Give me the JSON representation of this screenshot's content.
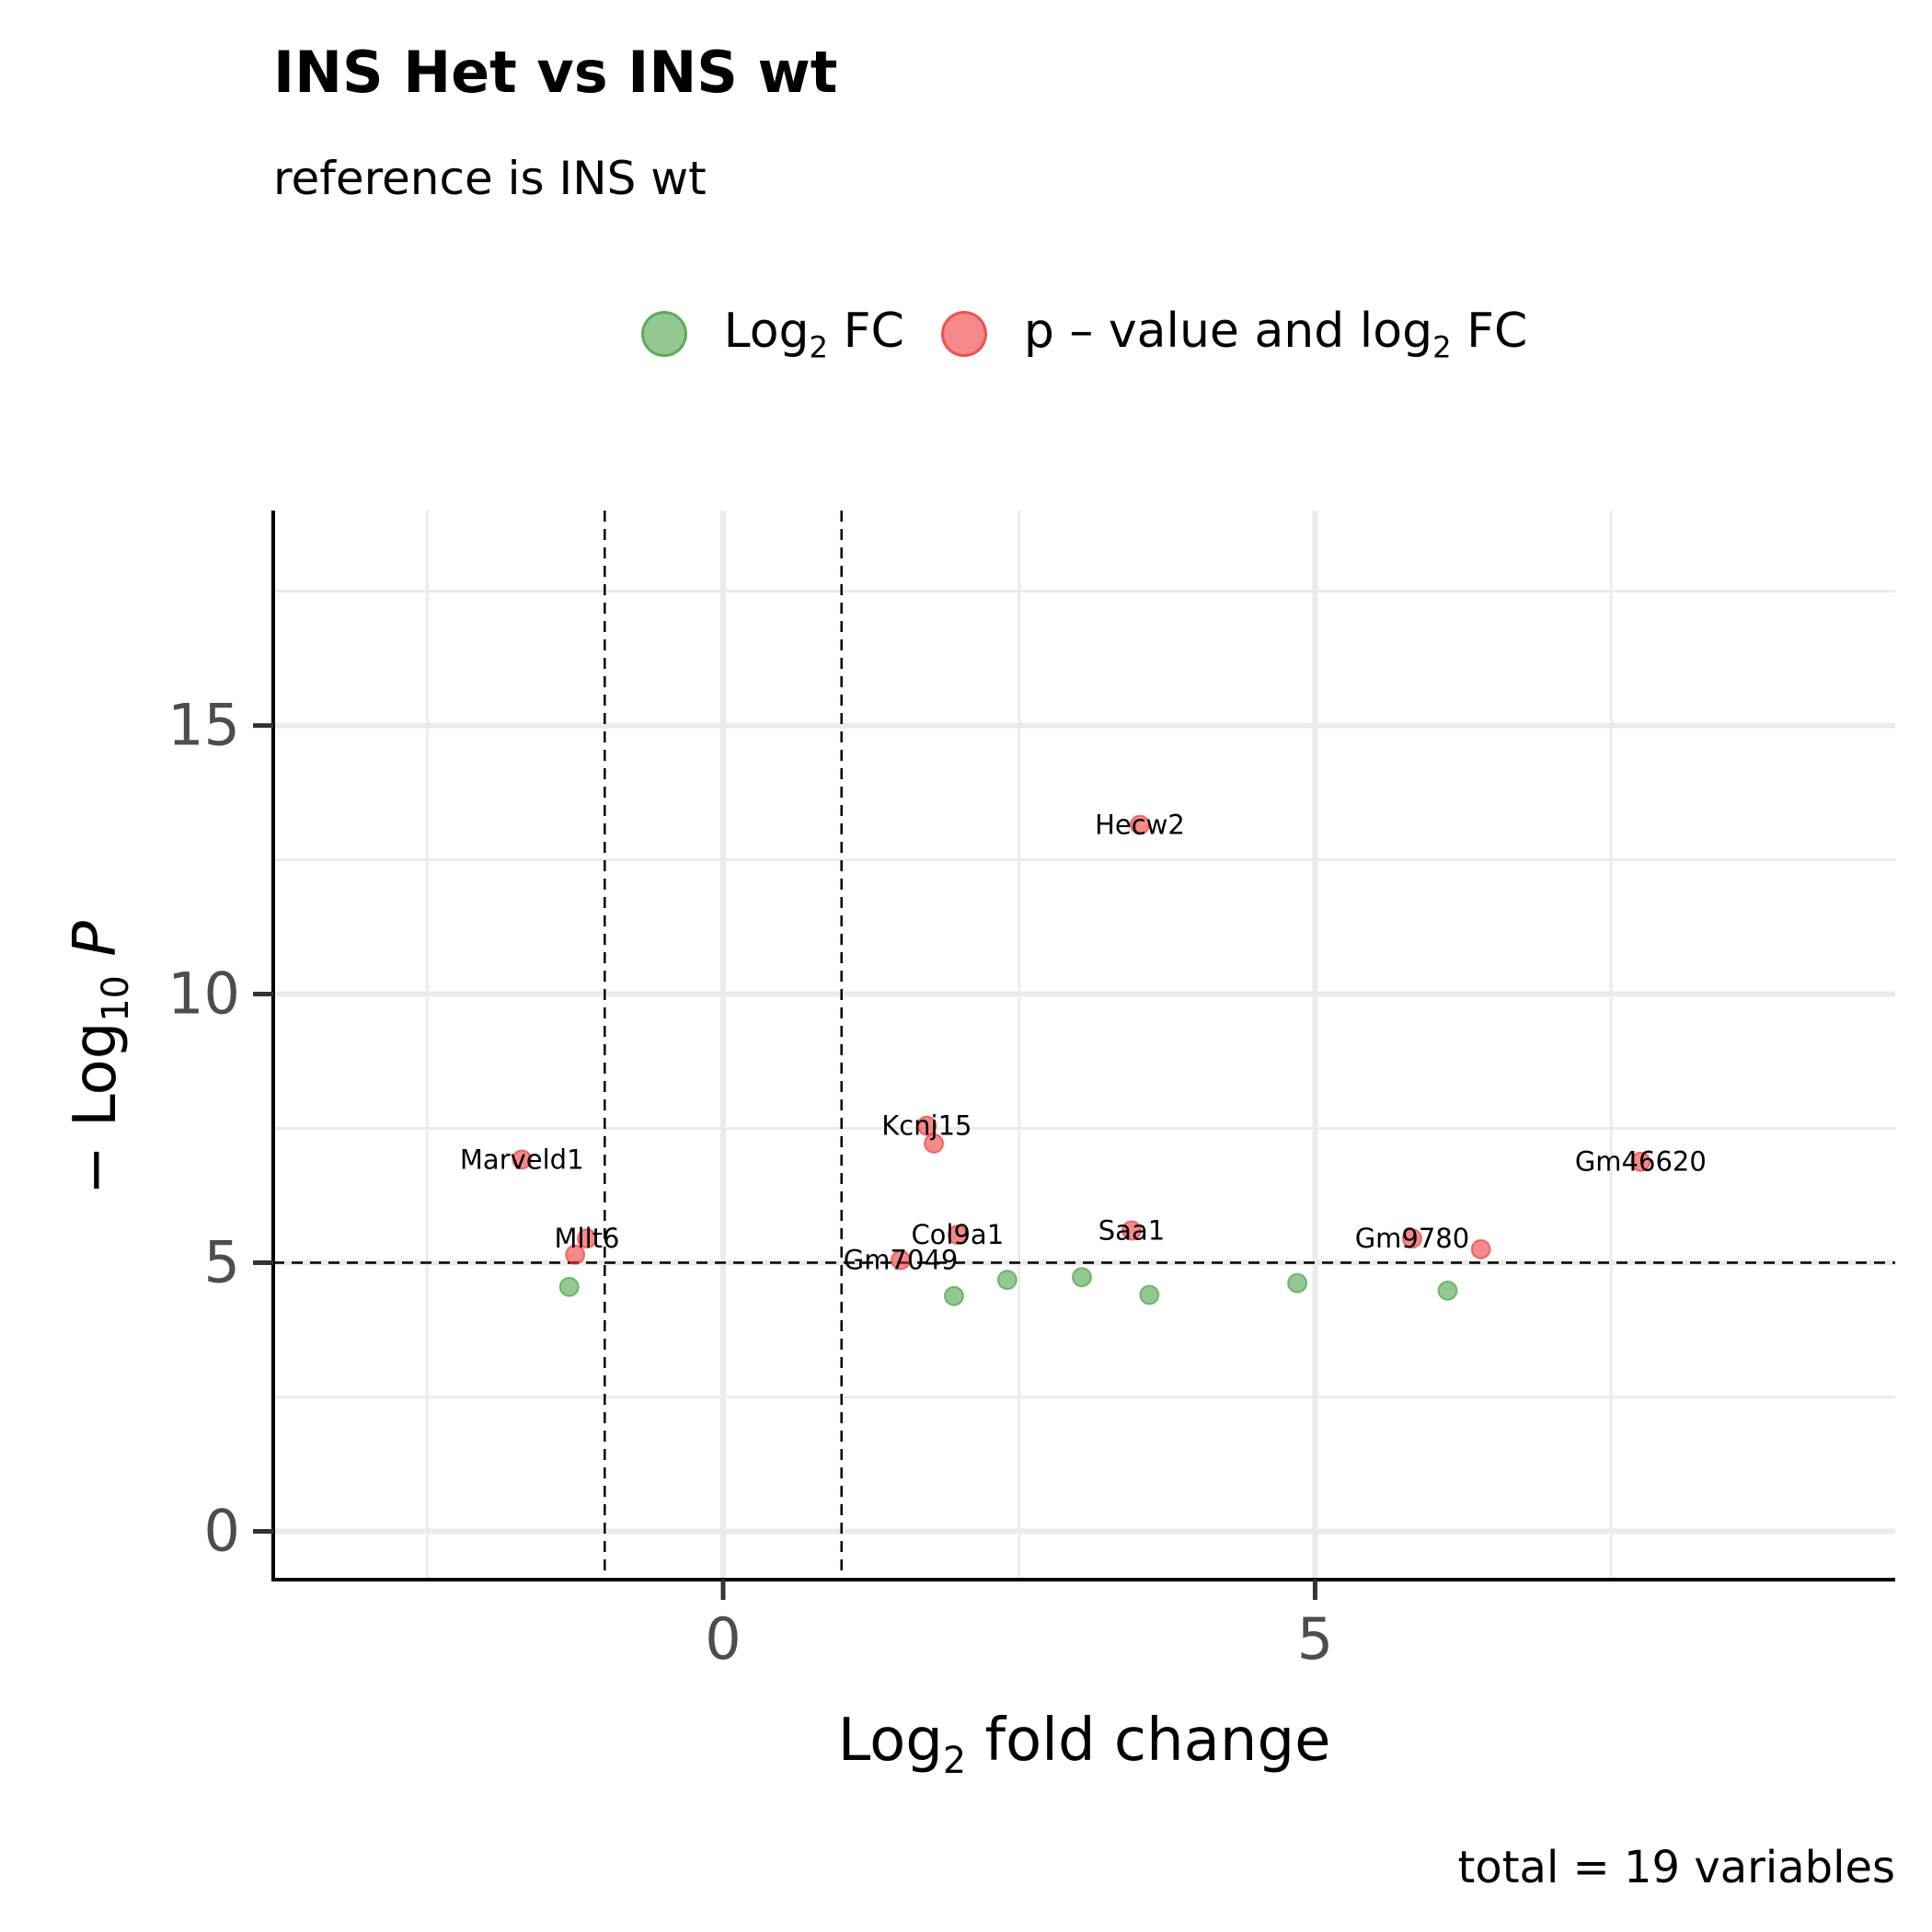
{
  "chart_data": {
    "type": "scatter",
    "title": "INS Het vs INS wt",
    "subtitle": "reference is INS wt",
    "caption": "total = 19 variables",
    "xlabel": {
      "main": "Log",
      "sub": "2",
      "rest": " fold change"
    },
    "ylabel": {
      "prefix": "− Log",
      "sub": "10",
      "italic": " P"
    },
    "xlim": [
      -3.8,
      9.9
    ],
    "ylim": [
      -0.9,
      19.0
    ],
    "xticks": [
      0,
      5
    ],
    "yticks": [
      0,
      5,
      10,
      15
    ],
    "xgrid_minor": [
      -2.5,
      2.5,
      7.5
    ],
    "ygrid_minor": [
      2.5,
      7.5,
      12.5,
      17.5
    ],
    "grid": true,
    "legend_position": "top",
    "cutoffs": {
      "x": [
        -1,
        1
      ],
      "y": 5
    },
    "series": [
      {
        "name": "Log2 FC",
        "legend": {
          "main": "Log",
          "sub": "2",
          "rest": " FC"
        },
        "color": "#3b9a37",
        "points": [
          {
            "x": -1.3,
            "y": 4.55
          },
          {
            "x": 1.95,
            "y": 4.38
          },
          {
            "x": 2.4,
            "y": 4.68
          },
          {
            "x": 3.03,
            "y": 4.73
          },
          {
            "x": 3.6,
            "y": 4.4
          },
          {
            "x": 4.85,
            "y": 4.62
          },
          {
            "x": 6.12,
            "y": 4.48
          }
        ]
      },
      {
        "name": "p – value and log2 FC",
        "legend": {
          "main": "p – value and log",
          "sub": "2",
          "rest": " FC"
        },
        "color": "#ee2a2a",
        "points": [
          {
            "x": 3.52,
            "y": 13.15,
            "label": "Hecw2"
          },
          {
            "x": 1.72,
            "y": 7.55,
            "label": "Kcnj15"
          },
          {
            "x": 1.78,
            "y": 7.22,
            "label": ""
          },
          {
            "x": -1.7,
            "y": 6.92,
            "label": "Marveld1"
          },
          {
            "x": 7.75,
            "y": 6.88,
            "label": "Gm46620"
          },
          {
            "x": 3.45,
            "y": 5.6,
            "label": "Saa1"
          },
          {
            "x": 1.98,
            "y": 5.52,
            "label": "Col9a1"
          },
          {
            "x": 5.82,
            "y": 5.45,
            "label": "Gm9780"
          },
          {
            "x": 6.4,
            "y": 5.25,
            "label": ""
          },
          {
            "x": -1.15,
            "y": 5.45,
            "label": "Mllt6"
          },
          {
            "x": -1.25,
            "y": 5.15,
            "label": ""
          },
          {
            "x": 1.5,
            "y": 5.05,
            "label": "Gm7049"
          }
        ]
      }
    ]
  }
}
